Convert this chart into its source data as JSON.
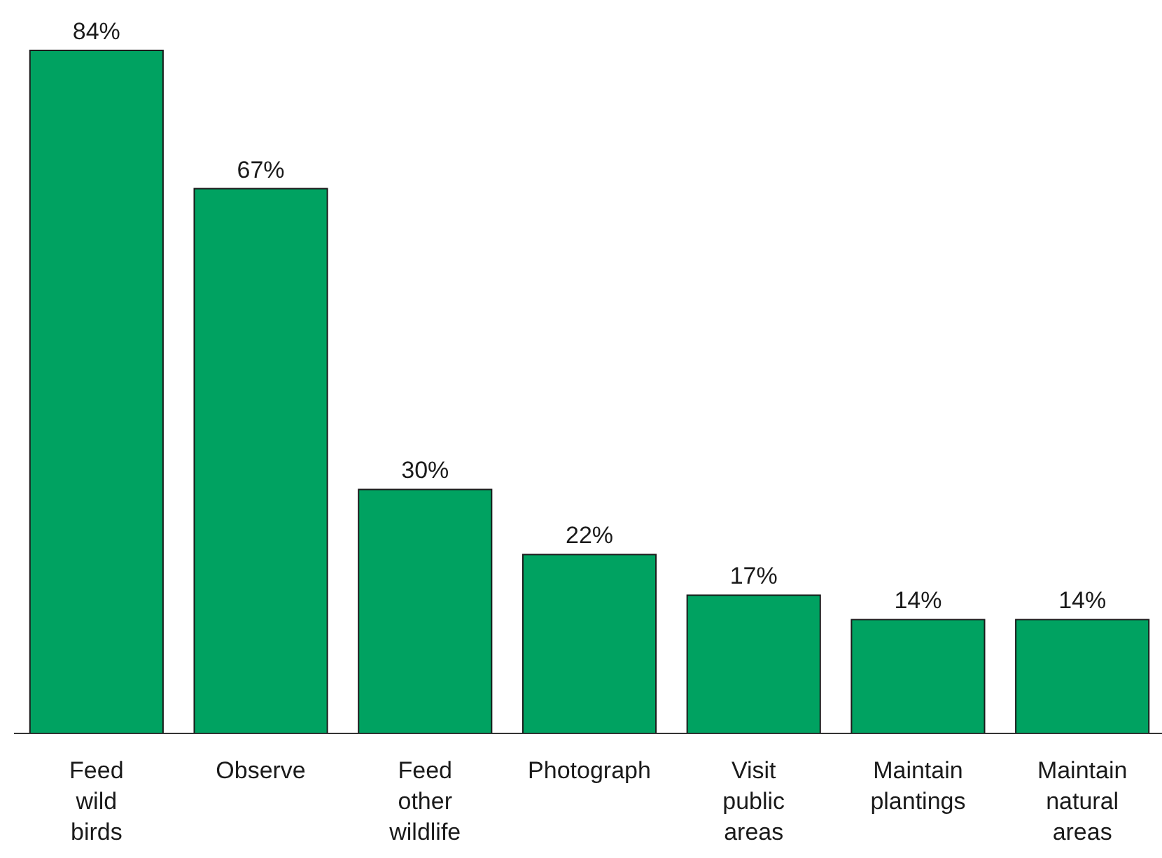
{
  "chart_data": {
    "type": "bar",
    "categories": [
      "Feed wild birds",
      "Observe",
      "Feed other wildlife",
      "Photograph",
      "Visit public areas",
      "Maintain plantings",
      "Maintain natural areas"
    ],
    "values": [
      84,
      67,
      30,
      22,
      17,
      14,
      14
    ],
    "value_labels": [
      "84%",
      "67%",
      "30%",
      "22%",
      "17%",
      "14%",
      "14%"
    ],
    "color": "#00a261"
  }
}
